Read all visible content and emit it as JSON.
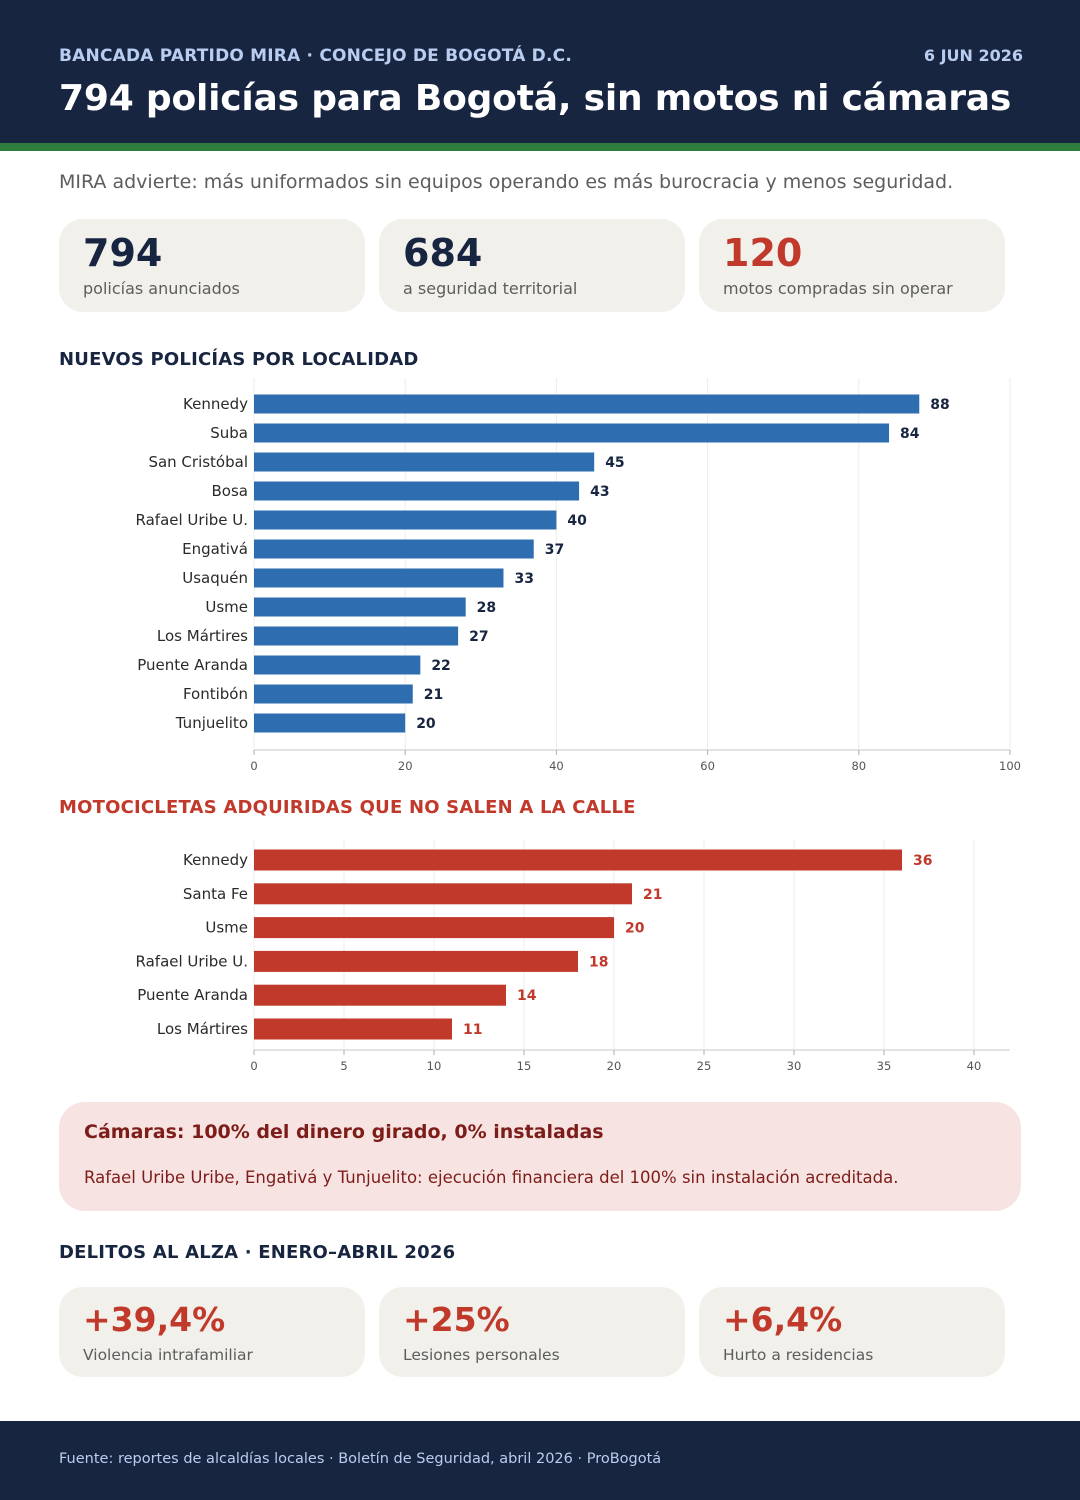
{
  "header": {
    "kicker": "BANCADA PARTIDO MIRA  ·  CONCEJO DE BOGOTÁ D.C.",
    "date": "6 JUN 2026",
    "title": "794 policías para Bogotá, sin motos ni cámaras",
    "subtitle": "MIRA advierte: más uniformados sin equipos operando es más burocracia y menos seguridad."
  },
  "colors": {
    "navy": "#182541",
    "green_stripe": "#2f7d3e",
    "blue_bar": "#2e6eb0",
    "red": "#c0392b",
    "alert_bg": "#f7e3e1",
    "card_bg": "#f1f0eb"
  },
  "stats": [
    {
      "value": "794",
      "label": "policías anunciados"
    },
    {
      "value": "684",
      "label": "a seguridad territorial"
    },
    {
      "value": "120",
      "label": "motos compradas sin operar"
    }
  ],
  "sections": {
    "police": "NUEVOS POLICÍAS POR LOCALIDAD",
    "motos": "MOTOCICLETAS ADQUIRIDAS QUE NO SALEN A LA CALLE",
    "crimes": "DELITOS AL ALZA  ·  ENERO–ABRIL 2026"
  },
  "chart_data": [
    {
      "type": "bar",
      "orientation": "horizontal",
      "title": "NUEVOS POLICÍAS POR LOCALIDAD",
      "categories": [
        "Kennedy",
        "Suba",
        "San Cristóbal",
        "Bosa",
        "Rafael Uribe U.",
        "Engativá",
        "Usaquén",
        "Usme",
        "Los Mártires",
        "Puente Aranda",
        "Fontibón",
        "Tunjuelito"
      ],
      "values": [
        88,
        84,
        45,
        43,
        40,
        37,
        33,
        28,
        27,
        22,
        21,
        20
      ],
      "xlim": [
        0,
        100
      ],
      "xticks": [
        0,
        20,
        40,
        60,
        80,
        100
      ],
      "grid": "vertical",
      "color": "#2e6eb0"
    },
    {
      "type": "bar",
      "orientation": "horizontal",
      "title": "MOTOCICLETAS ADQUIRIDAS QUE NO SALEN A LA CALLE",
      "categories": [
        "Kennedy",
        "Santa Fe",
        "Usme",
        "Rafael Uribe U.",
        "Puente Aranda",
        "Los Mártires"
      ],
      "values": [
        36,
        21,
        20,
        18,
        14,
        11
      ],
      "xlim": [
        0,
        42
      ],
      "xticks": [
        0,
        5,
        10,
        15,
        20,
        25,
        30,
        35,
        40
      ],
      "grid": "vertical",
      "color": "#c0392b"
    }
  ],
  "alert": {
    "title": "Cámaras: 100% del dinero girado, 0% instaladas",
    "text": "Rafael Uribe Uribe, Engativá y Tunjuelito: ejecución financiera del 100% sin instalación acreditada."
  },
  "crimes": [
    {
      "value": "+39,4%",
      "label": "Violencia intrafamiliar"
    },
    {
      "value": "+25%",
      "label": "Lesiones personales"
    },
    {
      "value": "+6,4%",
      "label": "Hurto a residencias"
    }
  ],
  "footer": {
    "source": "Fuente: reportes de alcaldías locales · Boletín de Seguridad, abril 2026 · ProBogotá"
  }
}
